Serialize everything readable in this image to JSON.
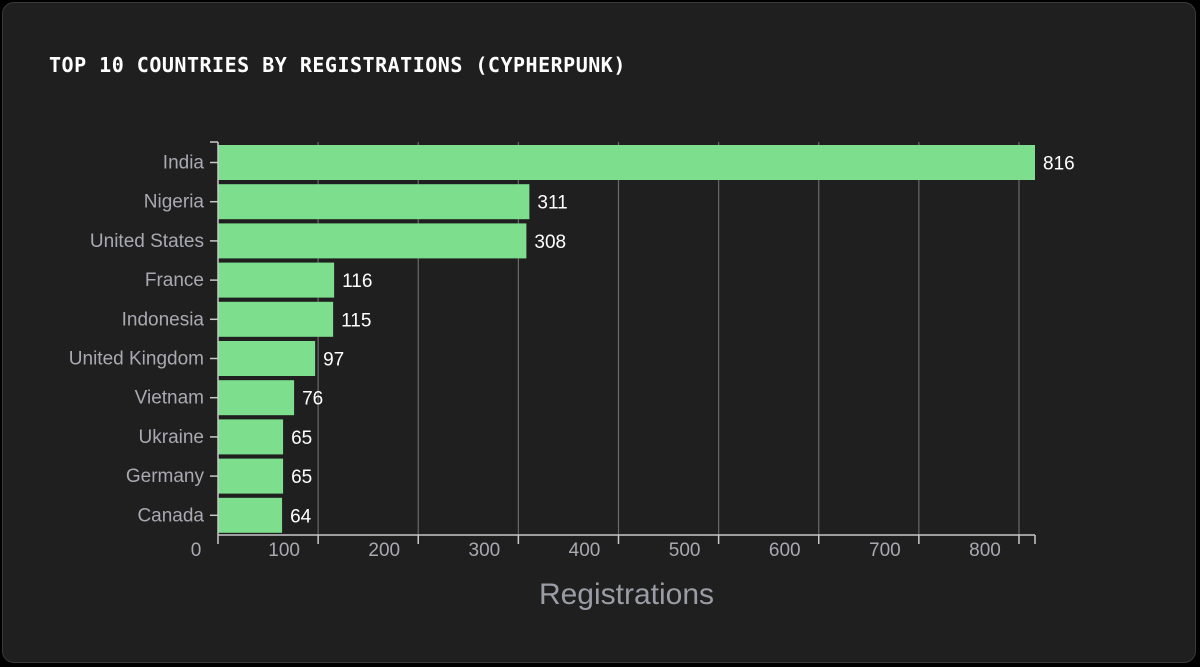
{
  "colors": {
    "background": "#1f1f1f",
    "bar": "#7ddf8e",
    "grid": "#6a6a6a",
    "axis": "#c8c8c8",
    "tick_text": "#a9a9b2",
    "value_text": "#ffffff"
  },
  "chart_data": {
    "type": "bar",
    "orientation": "horizontal",
    "title": "TOP 10 COUNTRIES BY REGISTRATIONS (CYPHERPUNK)",
    "xlabel": "Registrations",
    "ylabel": "",
    "categories": [
      "India",
      "Nigeria",
      "United States",
      "France",
      "Indonesia",
      "United Kingdom",
      "Vietnam",
      "Ukraine",
      "Germany",
      "Canada"
    ],
    "values": [
      816,
      311,
      308,
      116,
      115,
      97,
      76,
      65,
      65,
      64
    ],
    "xlim": [
      0,
      816
    ],
    "x_ticks": [
      0,
      100,
      200,
      300,
      400,
      500,
      600,
      700,
      800
    ],
    "grid": true,
    "legend": "none",
    "data_labels": true
  }
}
